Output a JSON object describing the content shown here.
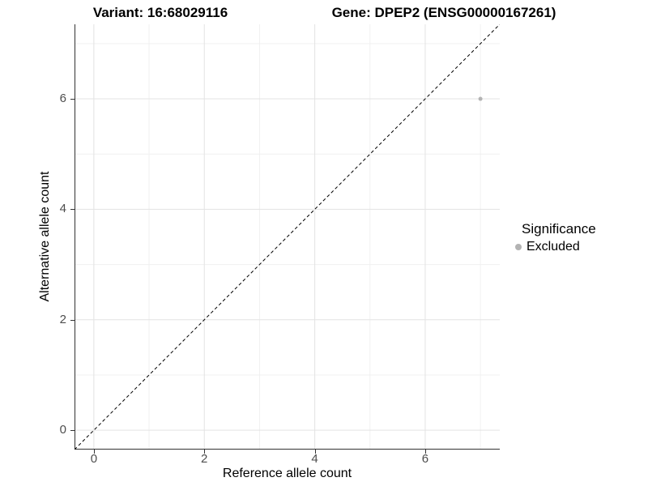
{
  "chart_data": {
    "type": "scatter",
    "title_left": "Variant: 16:68029116",
    "title_right": "Gene: DPEP2 (ENSG00000167261)",
    "xlabel": "Reference allele count",
    "ylabel": "Alternative allele count",
    "xlim": [
      -0.35,
      7.35
    ],
    "ylim": [
      -0.35,
      7.35
    ],
    "xticks": [
      0,
      2,
      4,
      6
    ],
    "yticks": [
      0,
      2,
      4,
      6
    ],
    "xticks_minor": [
      1,
      3,
      5,
      7
    ],
    "yticks_minor": [
      1,
      3,
      5,
      7
    ],
    "grid": true,
    "reference_line": {
      "type": "identity",
      "style": "dashed",
      "color": "#000000",
      "from": [
        -0.35,
        -0.35
      ],
      "to": [
        7.35,
        7.35
      ]
    },
    "series": [
      {
        "name": "Excluded",
        "color": "#b3b3b3",
        "point_size": 5,
        "points": [
          [
            7,
            6
          ]
        ]
      }
    ],
    "legend": {
      "position": "right",
      "title": "Significance",
      "items": [
        {
          "label": "Excluded",
          "color": "#b3b3b3"
        }
      ]
    }
  },
  "colors": {
    "background": "#ffffff",
    "axis_line": "#333333",
    "grid_major": "#e3e3e3",
    "grid_minor": "#f0f0f0",
    "tick_label": "#4d4d4d",
    "title_text": "#000000"
  }
}
